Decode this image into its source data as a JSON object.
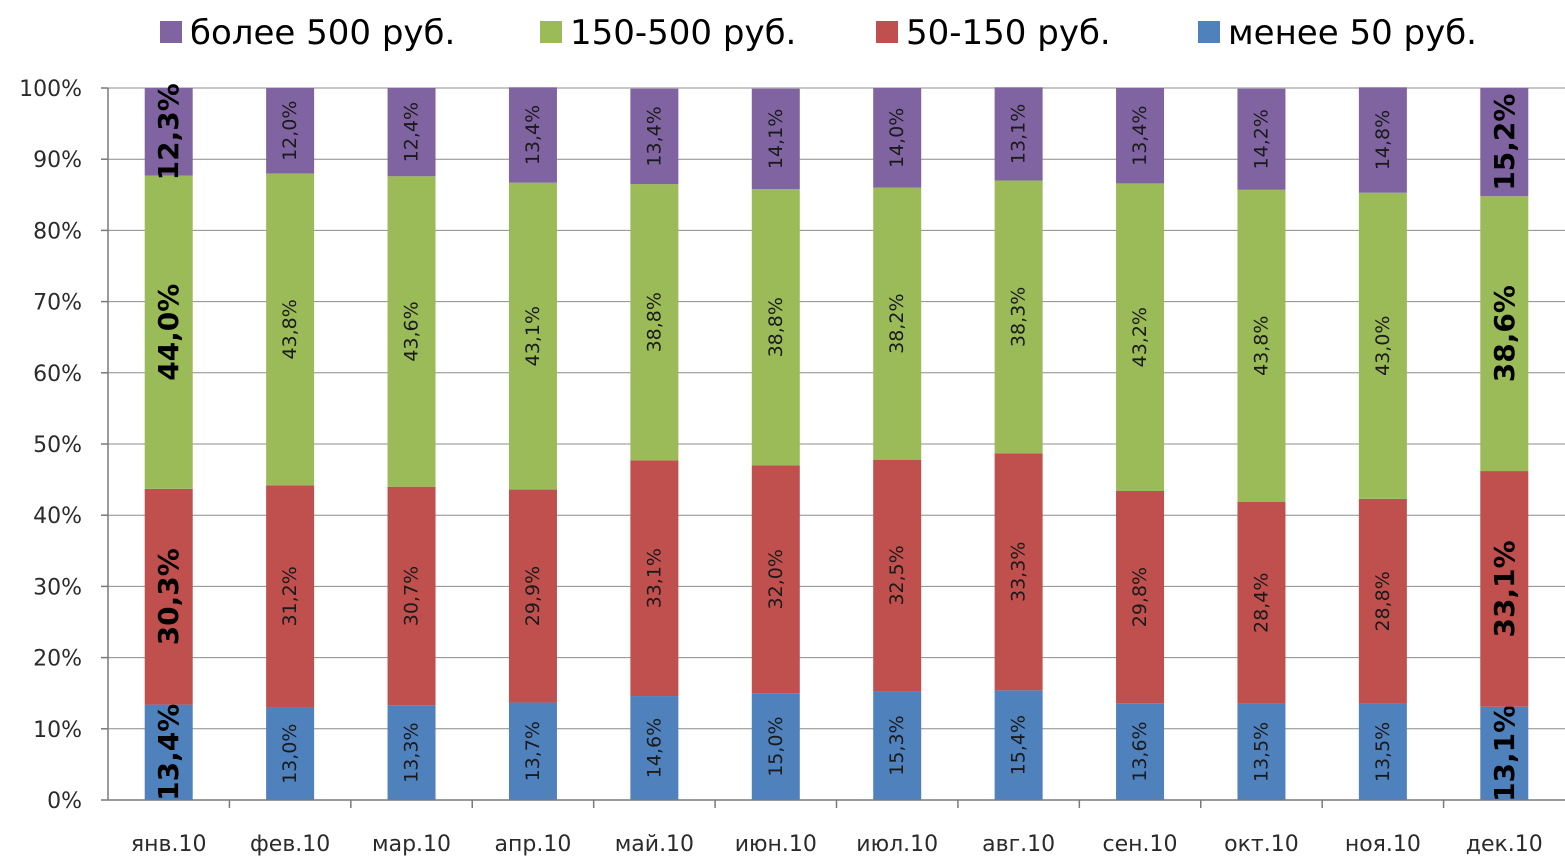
{
  "chart_data": {
    "type": "bar",
    "stacked": true,
    "categories": [
      "янв.10",
      "фев.10",
      "мар.10",
      "апр.10",
      "май.10",
      "июн.10",
      "июл.10",
      "авг.10",
      "сен.10",
      "окт.10",
      "ноя.10",
      "дек.10"
    ],
    "series": [
      {
        "name": "менее 50 руб.",
        "color": "#4f81bd",
        "values": [
          13.4,
          13.0,
          13.3,
          13.7,
          14.6,
          15.0,
          15.3,
          15.4,
          13.6,
          13.5,
          13.5,
          13.1
        ],
        "labels": [
          "13,4%",
          "13,0%",
          "13,3%",
          "13,7%",
          "14,6%",
          "15,0%",
          "15,3%",
          "15,4%",
          "13,6%",
          "13,5%",
          "13,5%",
          "13,1%"
        ]
      },
      {
        "name": "50-150 руб.",
        "color": "#c0504d",
        "values": [
          30.3,
          31.2,
          30.7,
          29.9,
          33.1,
          32.0,
          32.5,
          33.3,
          29.8,
          28.4,
          28.8,
          33.1
        ],
        "labels": [
          "30,3%",
          "31,2%",
          "30,7%",
          "29,9%",
          "33,1%",
          "32,0%",
          "32,5%",
          "33,3%",
          "29,8%",
          "28,4%",
          "28,8%",
          "33,1%"
        ]
      },
      {
        "name": "150-500 руб.",
        "color": "#9bbb59",
        "values": [
          44.0,
          43.8,
          43.6,
          43.1,
          38.8,
          38.8,
          38.2,
          38.3,
          43.2,
          43.8,
          43.0,
          38.6
        ],
        "labels": [
          "44,0%",
          "43,8%",
          "43,6%",
          "43,1%",
          "38,8%",
          "38,8%",
          "38,2%",
          "38,3%",
          "43,2%",
          "43,8%",
          "43,0%",
          "38,6%"
        ]
      },
      {
        "name": "более 500 руб.",
        "color": "#8064a2",
        "values": [
          12.3,
          12.0,
          12.4,
          13.4,
          13.4,
          14.1,
          14.0,
          13.1,
          13.4,
          14.2,
          14.8,
          15.2
        ],
        "labels": [
          "12,3%",
          "12,0%",
          "12,4%",
          "13,4%",
          "13,4%",
          "14,1%",
          "14,0%",
          "13,1%",
          "13,4%",
          "14,2%",
          "14,8%",
          "15,2%"
        ]
      }
    ],
    "legend": {
      "placement": "top",
      "order": [
        "более 500 руб.",
        "150-500 руб.",
        "50-150 руб.",
        "менее 50 руб."
      ]
    },
    "emphasized_categories": [
      "янв.10",
      "дек.10"
    ],
    "ylim": [
      0,
      100
    ],
    "yticks": [
      "0%",
      "10%",
      "20%",
      "30%",
      "40%",
      "50%",
      "60%",
      "70%",
      "80%",
      "90%",
      "100%"
    ],
    "grid": true,
    "title": "",
    "xlabel": "",
    "ylabel": ""
  }
}
